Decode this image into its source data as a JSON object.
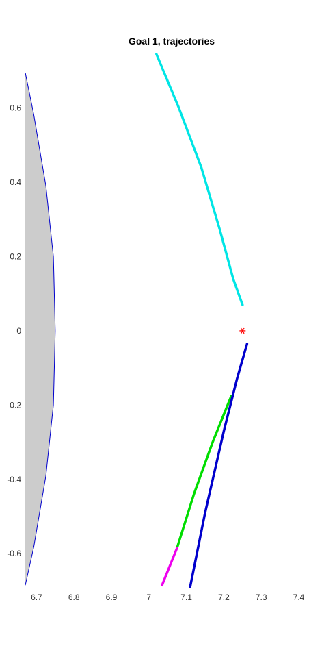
{
  "chart_data": {
    "type": "line",
    "title": "Goal 1, trajectories",
    "xlabel": "",
    "ylabel": "",
    "xlim": [
      6.67,
      7.4
    ],
    "ylim": [
      -0.69,
      0.71
    ],
    "x_ticks": [
      6.7,
      6.8,
      6.9,
      7,
      7.1,
      7.2,
      7.3,
      7.4
    ],
    "x_tick_labels": [
      "6.7",
      "6.8",
      "6.9",
      "7",
      "7.1",
      "7.2",
      "7.3",
      "7.4"
    ],
    "y_ticks": [
      0.6,
      0.4,
      0.2,
      0,
      -0.2,
      -0.4,
      -0.6
    ],
    "y_tick_labels": [
      "0.6",
      "0.4",
      "0.2",
      "0",
      "-0.2",
      "-0.4",
      "-0.6"
    ],
    "grid": false,
    "legend": "none",
    "obstacle": {
      "fill": "#cccccc",
      "edge_color": "#0000cc",
      "x": [
        6.67,
        6.693,
        6.725,
        6.745,
        6.75,
        6.745,
        6.725,
        6.693,
        6.67
      ],
      "y": [
        0.695,
        0.58,
        0.39,
        0.2,
        0,
        -0.2,
        -0.39,
        -0.58,
        -0.685
      ]
    },
    "goal": {
      "x": 7.25,
      "y": 0.0,
      "marker": "*",
      "color": "#ff0000"
    },
    "series": [
      {
        "color": "#00e5e5",
        "x": [
          7.02,
          7.08,
          7.14,
          7.19,
          7.225,
          7.25
        ],
        "y": [
          0.745,
          0.6,
          0.44,
          0.27,
          0.14,
          0.07
        ]
      },
      {
        "color": "#00dd00",
        "x": [
          7.075,
          7.12,
          7.17,
          7.22
        ],
        "y": [
          -0.585,
          -0.44,
          -0.3,
          -0.175
        ]
      },
      {
        "color": "#ee00ee",
        "x": [
          7.035,
          7.075
        ],
        "y": [
          -0.685,
          -0.585
        ]
      },
      {
        "color": "#0000cc",
        "x": [
          7.11,
          7.15,
          7.2,
          7.235,
          7.262
        ],
        "y": [
          -0.69,
          -0.49,
          -0.27,
          -0.13,
          -0.035
        ]
      }
    ]
  }
}
